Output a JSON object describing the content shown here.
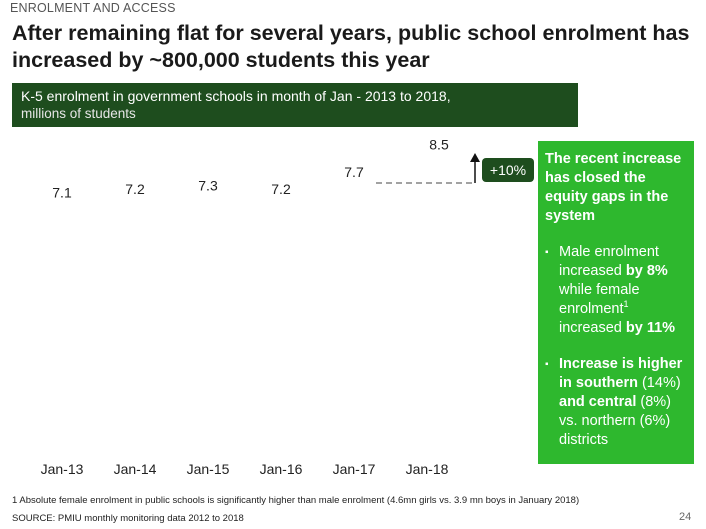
{
  "slide": {
    "kicker": "ENROLMENT AND ACCESS",
    "headline": "After remaining flat for several years, public school enrolment has increased by ~800,000 students this year",
    "chart_title": "K-5 enrolment in government schools in month of Jan - 2013 to 2018,",
    "chart_subtitle": "millions of students",
    "footnote": "1 Absolute female enrolment in public schools is significantly higher than male enrolment (4.6mn girls vs. 3.9 mn boys in January 2018)",
    "source": "SOURCE: PMIU monthly monitoring data 2012 to 2018",
    "page_number": "24"
  },
  "side_panel": {
    "headline": "The recent increase has closed the equity gaps in the system",
    "bullet_mark": "▪",
    "bullet1": {
      "t1": "Male enrolment increased ",
      "t2": "by 8%",
      "t3": " while female enrolment",
      "sup": "1",
      "t4": " increased ",
      "t5": "by 11%"
    },
    "bullet2": {
      "t1": "Increase is higher in southern",
      "t2": " (14%) ",
      "t3": "and central",
      "t4": " (8%) vs. northern (6%) districts"
    }
  },
  "chart_data": {
    "type": "bar",
    "title": "K-5 enrolment in government schools in month of Jan - 2013 to 2018,",
    "subtitle": "millions of students",
    "categories": [
      "Jan-13",
      "Jan-14",
      "Jan-15",
      "Jan-16",
      "Jan-17",
      "Jan-18"
    ],
    "values": [
      7.1,
      7.2,
      7.3,
      7.2,
      7.7,
      8.5
    ],
    "value_labels": [
      "7.1",
      "7.2",
      "7.3",
      "7.2",
      "7.7",
      "8.5"
    ],
    "growth_label": "+10%",
    "colors": {
      "growth_badge": "#1e4d1e",
      "header": "#1e4d1e",
      "panel": "#2eb82e"
    }
  }
}
